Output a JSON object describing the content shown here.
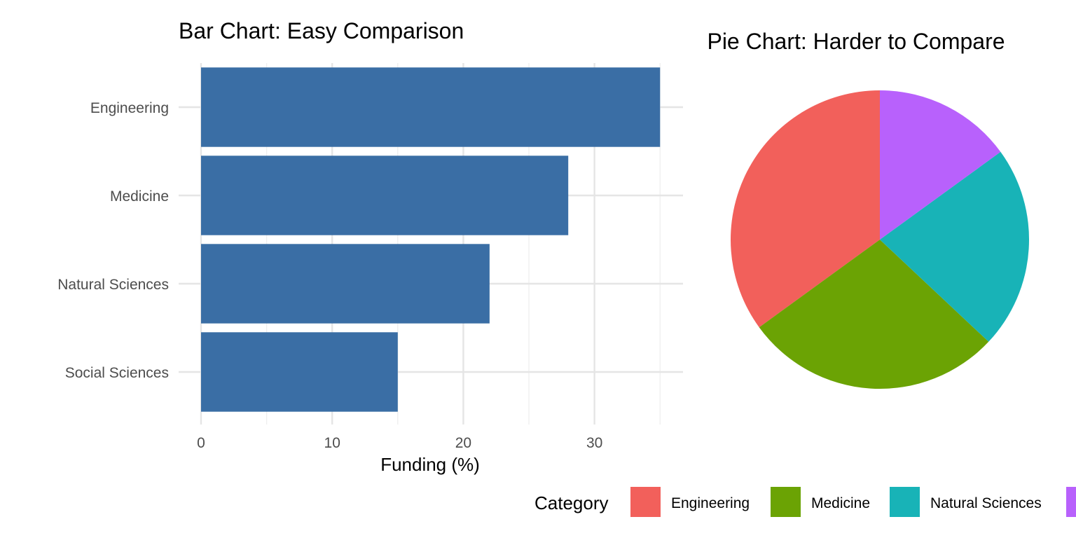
{
  "chart_data": [
    {
      "type": "bar",
      "orientation": "horizontal",
      "title": "Bar Chart: Easy Comparison",
      "xlabel": "Funding (%)",
      "ylabel": "",
      "categories": [
        "Engineering",
        "Medicine",
        "Natural Sciences",
        "Social Sciences"
      ],
      "values": [
        35,
        28,
        22,
        15
      ],
      "xlim": [
        0,
        36.75
      ],
      "xticks": [
        "0",
        "10",
        "20",
        "30"
      ],
      "grid": true,
      "bar_color": "#3A6EA5"
    },
    {
      "type": "pie",
      "title": "Pie Chart: Harder to Compare",
      "categories": [
        "Engineering",
        "Medicine",
        "Natural Sciences",
        "Social Sciences"
      ],
      "values": [
        35,
        28,
        22,
        15
      ],
      "colors": [
        "#F2605B",
        "#6BA304",
        "#18B3B7",
        "#B861FC"
      ],
      "direction": "counterclockwise from top"
    }
  ],
  "legend": {
    "title": "Category",
    "placement": "bottom",
    "items": [
      "Engineering",
      "Medicine",
      "Natural Sciences",
      "Social Sciences"
    ]
  }
}
